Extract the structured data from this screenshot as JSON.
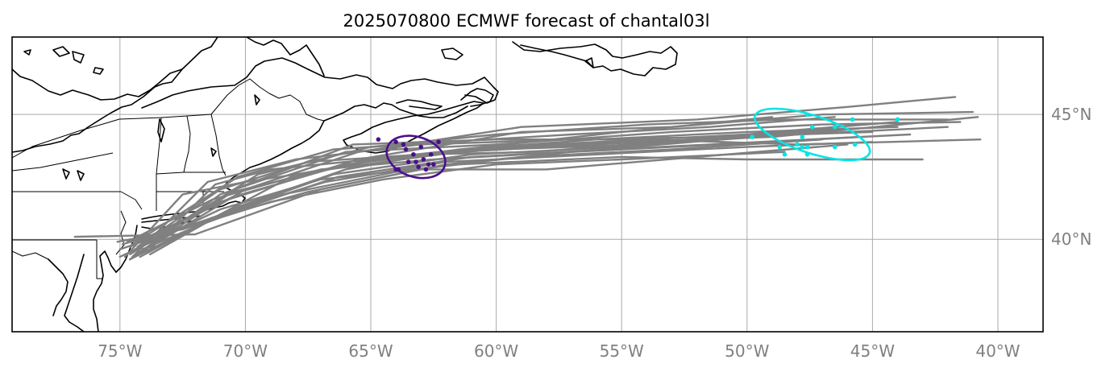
{
  "figure": {
    "title": "2025070800 ECMWF forecast of chantal03l"
  },
  "map": {
    "projection": "PlateCarree",
    "extent": {
      "lon": [
        -79.3,
        -38.2
      ],
      "lat": [
        36.3,
        48.1
      ]
    },
    "gridlines": {
      "lon": [
        -75,
        -70,
        -65,
        -60,
        -55,
        -50,
        -45,
        -40
      ],
      "lat": [
        40,
        45
      ],
      "color": "#a9a9a9"
    },
    "lon_labels": [
      "75°W",
      "70°W",
      "65°W",
      "60°W",
      "55°W",
      "50°W",
      "45°W",
      "40°W"
    ],
    "lat_labels": [
      "40°N",
      "45°N"
    ],
    "coastline_color": "#000000",
    "border_color": "#000000"
  },
  "forecast": {
    "track_color": "#808080",
    "ensemble_tracks": [
      [
        [
          -74.6,
          39.2
        ],
        [
          -71.0,
          41.8
        ],
        [
          -66.0,
          43.5
        ],
        [
          -60.0,
          43.8
        ],
        [
          -53.0,
          44.3
        ],
        [
          -47.0,
          44.6
        ],
        [
          -41.5,
          44.7
        ]
      ],
      [
        [
          -74.2,
          39.5
        ],
        [
          -70.5,
          41.9
        ],
        [
          -65.0,
          43.2
        ],
        [
          -60.0,
          43.6
        ],
        [
          -54.0,
          43.8
        ],
        [
          -48.0,
          44.2
        ],
        [
          -42.0,
          44.5
        ]
      ],
      [
        [
          -75.0,
          39.6
        ],
        [
          -71.5,
          40.8
        ],
        [
          -66.5,
          42.6
        ],
        [
          -61.0,
          43.4
        ],
        [
          -55.0,
          43.7
        ],
        [
          -49.0,
          44.3
        ],
        [
          -44.0,
          44.7
        ]
      ],
      [
        [
          -74.5,
          39.8
        ],
        [
          -71.0,
          41.5
        ],
        [
          -65.5,
          43.2
        ],
        [
          -59.0,
          44.3
        ],
        [
          -53.0,
          44.5
        ],
        [
          -47.0,
          45.0
        ],
        [
          -41.0,
          45.1
        ]
      ],
      [
        [
          -73.8,
          39.4
        ],
        [
          -70.8,
          41.1
        ],
        [
          -66.8,
          42.3
        ],
        [
          -62.0,
          43.1
        ],
        [
          -56.0,
          43.4
        ],
        [
          -50.0,
          43.7
        ],
        [
          -45.0,
          43.9
        ]
      ],
      [
        [
          -74.7,
          39.9
        ],
        [
          -71.3,
          41.6
        ],
        [
          -67.0,
          42.8
        ],
        [
          -62.5,
          43.2
        ],
        [
          -57.0,
          43.5
        ],
        [
          -51.0,
          43.8
        ],
        [
          -45.5,
          44.1
        ]
      ],
      [
        [
          -75.0,
          39.3
        ],
        [
          -71.0,
          41.2
        ],
        [
          -67.0,
          42.4
        ],
        [
          -61.5,
          43.0
        ],
        [
          -55.0,
          43.3
        ],
        [
          -50.0,
          43.2
        ],
        [
          -43.0,
          43.2
        ]
      ],
      [
        [
          -74.3,
          39.4
        ],
        [
          -70.0,
          42.0
        ],
        [
          -65.5,
          43.5
        ],
        [
          -59.0,
          44.5
        ],
        [
          -52.0,
          44.8
        ],
        [
          -46.0,
          45.3
        ],
        [
          -41.7,
          45.7
        ]
      ],
      [
        [
          -74.6,
          39.7
        ],
        [
          -70.5,
          41.7
        ],
        [
          -66.0,
          43.0
        ],
        [
          -61.0,
          43.6
        ],
        [
          -55.0,
          43.9
        ],
        [
          -49.0,
          44.1
        ],
        [
          -40.8,
          44.9
        ]
      ],
      [
        [
          -74.4,
          39.6
        ],
        [
          -70.2,
          42.1
        ],
        [
          -65.7,
          43.8
        ],
        [
          -60.0,
          44.0
        ],
        [
          -54.0,
          44.0
        ],
        [
          -48.0,
          43.8
        ],
        [
          -40.7,
          44.0
        ]
      ],
      [
        [
          -74.9,
          39.8
        ],
        [
          -71.8,
          40.7
        ],
        [
          -67.5,
          41.9
        ],
        [
          -63.0,
          42.8
        ],
        [
          -58.0,
          42.8
        ],
        [
          -52.0,
          43.3
        ],
        [
          -46.0,
          43.8
        ]
      ],
      [
        [
          -74.6,
          39.2
        ],
        [
          -72.0,
          40.5
        ],
        [
          -68.5,
          41.8
        ],
        [
          -64.0,
          42.7
        ],
        [
          -59.0,
          43.3
        ],
        [
          -53.0,
          43.6
        ],
        [
          -47.0,
          44.0
        ]
      ],
      [
        [
          -75.1,
          39.9
        ],
        [
          -72.5,
          40.4
        ],
        [
          -69.0,
          41.5
        ],
        [
          -64.5,
          42.4
        ],
        [
          -60.0,
          43.0
        ],
        [
          -55.0,
          43.2
        ],
        [
          -48.5,
          43.5
        ]
      ],
      [
        [
          -74.0,
          39.5
        ],
        [
          -70.3,
          41.3
        ],
        [
          -66.0,
          42.8
        ],
        [
          -61.5,
          43.6
        ],
        [
          -56.0,
          44.0
        ],
        [
          -50.0,
          44.3
        ],
        [
          -44.0,
          44.5
        ]
      ],
      [
        [
          -74.5,
          39.3
        ],
        [
          -71.5,
          42.3
        ],
        [
          -68.0,
          43.2
        ],
        [
          -63.0,
          43.8
        ],
        [
          -57.0,
          44.0
        ],
        [
          -51.0,
          44.1
        ],
        [
          -45.0,
          44.3
        ]
      ],
      [
        [
          -76.8,
          40.1
        ],
        [
          -72.0,
          40.2
        ],
        [
          -67.0,
          42.0
        ],
        [
          -62.0,
          43.0
        ],
        [
          -57.0,
          43.5
        ],
        [
          -51.0,
          44.0
        ],
        [
          -45.5,
          44.6
        ]
      ],
      [
        [
          -74.6,
          39.4
        ],
        [
          -69.5,
          42.6
        ],
        [
          -65.0,
          43.7
        ],
        [
          -60.0,
          44.2
        ],
        [
          -54.0,
          44.6
        ],
        [
          -48.5,
          44.8
        ],
        [
          -42.0,
          44.8
        ]
      ],
      [
        [
          -74.1,
          39.6
        ],
        [
          -70.8,
          41.0
        ],
        [
          -66.3,
          42.5
        ],
        [
          -61.0,
          43.3
        ],
        [
          -55.5,
          43.6
        ],
        [
          -49.5,
          43.9
        ],
        [
          -43.5,
          44.2
        ]
      ],
      [
        [
          -74.2,
          39.3
        ],
        [
          -71.0,
          41.0
        ],
        [
          -68.0,
          42.6
        ],
        [
          -64.0,
          43.3
        ],
        [
          -58.0,
          43.8
        ],
        [
          -52.0,
          44.1
        ],
        [
          -46.0,
          44.4
        ]
      ],
      [
        [
          -74.8,
          39.3
        ],
        [
          -72.5,
          41.8
        ],
        [
          -70.0,
          42.3
        ],
        [
          -66.0,
          42.9
        ],
        [
          -61.5,
          43.5
        ],
        [
          -56.0,
          43.8
        ],
        [
          -50.5,
          44.1
        ]
      ],
      [
        [
          -74.3,
          39.7
        ],
        [
          -71.0,
          42.0
        ],
        [
          -67.5,
          43.1
        ],
        [
          -63.0,
          43.4
        ],
        [
          -58.5,
          43.5
        ],
        [
          -53.5,
          43.9
        ],
        [
          -47.5,
          44.3
        ]
      ],
      [
        [
          -74.5,
          39.8
        ],
        [
          -70.3,
          42.5
        ],
        [
          -66.5,
          43.6
        ],
        [
          -62.0,
          43.9
        ],
        [
          -57.0,
          44.2
        ],
        [
          -51.5,
          44.5
        ],
        [
          -46.5,
          44.9
        ]
      ],
      [
        [
          -73.9,
          39.5
        ],
        [
          -71.2,
          42.2
        ],
        [
          -69.0,
          42.8
        ],
        [
          -65.0,
          43.2
        ],
        [
          -60.5,
          43.7
        ],
        [
          -55.0,
          44.3
        ],
        [
          -49.0,
          44.9
        ]
      ]
    ],
    "day1_points": {
      "color": "#4b0f8c",
      "points": [
        [
          -64.0,
          43.9
        ],
        [
          -63.6,
          43.6
        ],
        [
          -63.3,
          43.4
        ],
        [
          -63.2,
          43.1
        ],
        [
          -62.9,
          43.2
        ],
        [
          -62.7,
          43.0
        ],
        [
          -63.0,
          43.7
        ],
        [
          -62.6,
          43.4
        ],
        [
          -63.5,
          43.1
        ],
        [
          -62.5,
          43.0
        ],
        [
          -63.9,
          42.8
        ],
        [
          -62.3,
          43.9
        ],
        [
          -64.7,
          44.0
        ],
        [
          -63.7,
          43.8
        ],
        [
          -64.0,
          42.8
        ],
        [
          -63.1,
          42.9
        ],
        [
          -62.8,
          42.8
        ]
      ],
      "ellipse": {
        "center": [
          -63.2,
          43.3
        ],
        "semi_lon": 1.2,
        "semi_lat": 0.8,
        "tilt_deg": -18
      }
    },
    "day2_points": {
      "color": "#00e5e5",
      "points": [
        [
          -47.6,
          45.0
        ],
        [
          -47.4,
          44.5
        ],
        [
          -46.5,
          44.5
        ],
        [
          -44.0,
          44.8
        ],
        [
          -45.8,
          44.8
        ],
        [
          -47.8,
          44.1
        ],
        [
          -48.0,
          43.8
        ],
        [
          -47.6,
          43.7
        ],
        [
          -46.5,
          43.7
        ],
        [
          -48.5,
          43.4
        ],
        [
          -47.6,
          43.4
        ],
        [
          -45.7,
          43.8
        ],
        [
          -49.8,
          44.1
        ],
        [
          -47.8,
          43.7
        ],
        [
          -48.7,
          43.7
        ]
      ],
      "ellipse": {
        "center": [
          -47.4,
          44.2
        ],
        "semi_lon": 2.4,
        "semi_lat": 0.75,
        "tilt_deg": -18
      }
    }
  }
}
